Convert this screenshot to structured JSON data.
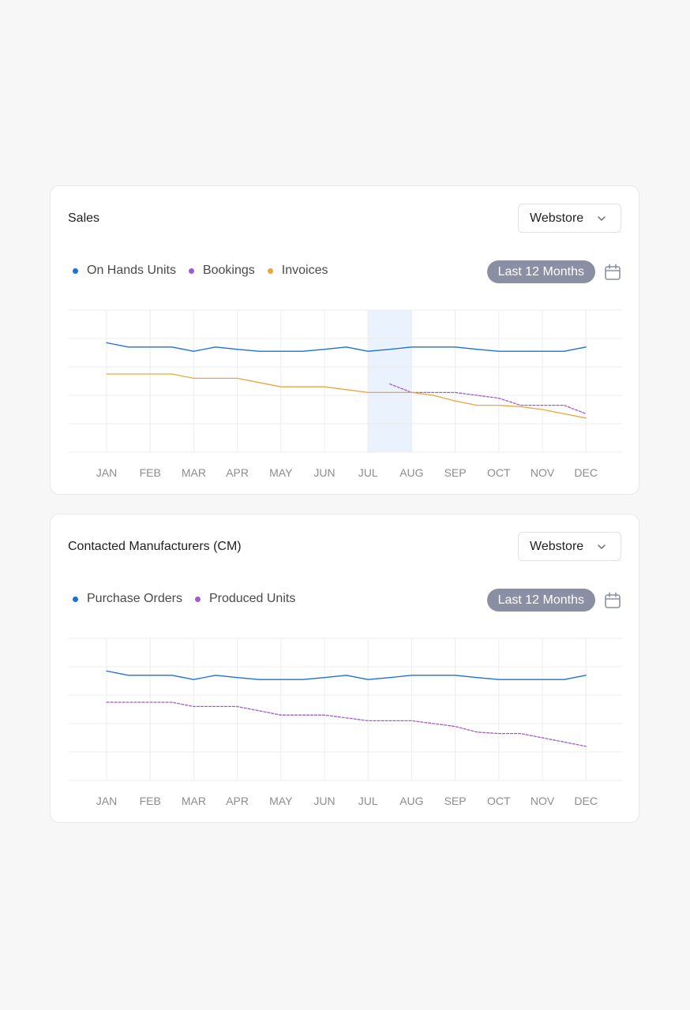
{
  "colors": {
    "blue": "#1f6fd6",
    "purple": "#a05ad6",
    "orange": "#eaa63c",
    "grid": "#ececec",
    "highlight": "#eaf2fd"
  },
  "cards": [
    {
      "title": "Sales",
      "dropdown": {
        "value": "Webstore",
        "icon": "chevron-down-icon"
      },
      "range_label": "Last 12 Months",
      "calendar_icon": "calendar-icon",
      "legend": [
        {
          "label": "On Hands Units",
          "color": "#1f6fd6"
        },
        {
          "label": "Bookings",
          "color": "#a05ad6"
        },
        {
          "label": "Invoices",
          "color": "#eaa63c"
        }
      ]
    },
    {
      "title": "Contacted Manufacturers (CM)",
      "dropdown": {
        "value": "Webstore",
        "icon": "chevron-down-icon"
      },
      "range_label": "Last 12 Months",
      "calendar_icon": "calendar-icon",
      "legend": [
        {
          "label": "Purchase Orders",
          "color": "#1f6fd6"
        },
        {
          "label": "Produced Units",
          "color": "#a05ad6"
        }
      ]
    }
  ],
  "chart_data": [
    {
      "type": "line",
      "categories": [
        "JAN",
        "FEB",
        "MAR",
        "APR",
        "MAY",
        "JUN",
        "JUL",
        "AUG",
        "SEP",
        "OCT",
        "NOV",
        "DEC"
      ],
      "x": [
        0,
        0.5,
        1,
        1.5,
        2,
        2.5,
        3,
        3.5,
        4,
        4.5,
        5,
        5.5,
        6,
        6.5,
        7,
        7.5,
        8,
        8.5,
        9,
        9.5,
        10,
        10.5,
        11
      ],
      "ylim": [
        0,
        5
      ],
      "grid": true,
      "highlight_category": "JUL",
      "series": [
        {
          "name": "On Hands Units",
          "style": "solid",
          "color": "#1f6fd6",
          "values": [
            3.85,
            3.7,
            3.7,
            3.7,
            3.55,
            3.7,
            3.62,
            3.55,
            3.55,
            3.55,
            3.62,
            3.7,
            3.55,
            3.62,
            3.7,
            3.7,
            3.7,
            3.62,
            3.55,
            3.55,
            3.55,
            3.55,
            3.7
          ]
        },
        {
          "name": "Bookings",
          "style": "dashed",
          "color": "#a05ad6",
          "values": [
            null,
            null,
            null,
            null,
            null,
            null,
            null,
            null,
            null,
            null,
            null,
            null,
            null,
            2.4,
            2.1,
            2.1,
            2.1,
            2.0,
            1.9,
            1.65,
            1.65,
            1.65,
            1.35
          ]
        },
        {
          "name": "Invoices",
          "style": "solid",
          "color": "#eaa63c",
          "values": [
            2.75,
            2.75,
            2.75,
            2.75,
            2.6,
            2.6,
            2.6,
            2.45,
            2.3,
            2.3,
            2.3,
            2.2,
            2.1,
            2.1,
            2.1,
            2.0,
            1.8,
            1.65,
            1.65,
            1.6,
            1.5,
            1.35,
            1.2
          ]
        }
      ]
    },
    {
      "type": "line",
      "categories": [
        "JAN",
        "FEB",
        "MAR",
        "APR",
        "MAY",
        "JUN",
        "JUL",
        "AUG",
        "SEP",
        "OCT",
        "NOV",
        "DEC"
      ],
      "x": [
        0,
        0.5,
        1,
        1.5,
        2,
        2.5,
        3,
        3.5,
        4,
        4.5,
        5,
        5.5,
        6,
        6.5,
        7,
        7.5,
        8,
        8.5,
        9,
        9.5,
        10,
        10.5,
        11
      ],
      "ylim": [
        0,
        5
      ],
      "grid": true,
      "series": [
        {
          "name": "Purchase Orders",
          "style": "solid",
          "color": "#1f6fd6",
          "values": [
            3.85,
            3.7,
            3.7,
            3.7,
            3.55,
            3.7,
            3.62,
            3.55,
            3.55,
            3.55,
            3.62,
            3.7,
            3.55,
            3.62,
            3.7,
            3.7,
            3.7,
            3.62,
            3.55,
            3.55,
            3.55,
            3.55,
            3.7
          ]
        },
        {
          "name": "Produced Units",
          "style": "dashed",
          "color": "#a05ad6",
          "values": [
            2.75,
            2.75,
            2.75,
            2.75,
            2.6,
            2.6,
            2.6,
            2.45,
            2.3,
            2.3,
            2.3,
            2.2,
            2.1,
            2.1,
            2.1,
            2.0,
            1.9,
            1.7,
            1.65,
            1.65,
            1.5,
            1.35,
            1.2
          ]
        }
      ]
    }
  ]
}
